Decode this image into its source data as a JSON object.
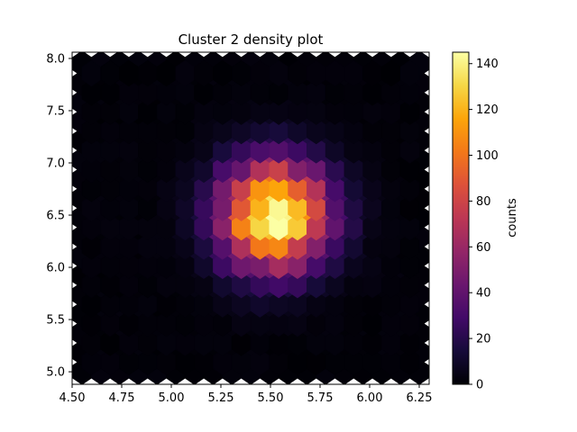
{
  "chart_data": {
    "type": "heatmap",
    "subtype": "hexbin",
    "title": "Cluster 2 density plot",
    "xlabel": "",
    "ylabel": "",
    "xlim": [
      4.5,
      6.3
    ],
    "ylim": [
      4.88,
      8.06
    ],
    "x_ticks": [
      "4.50",
      "4.75",
      "5.00",
      "5.25",
      "5.50",
      "5.75",
      "6.00",
      "6.25"
    ],
    "y_ticks": [
      "5.0",
      "5.5",
      "6.0",
      "6.5",
      "7.0",
      "7.5",
      "8.0"
    ],
    "x_tick_values": [
      4.5,
      4.75,
      5.0,
      5.25,
      5.5,
      5.75,
      6.0,
      6.25
    ],
    "y_tick_values": [
      5.0,
      5.5,
      6.0,
      6.5,
      7.0,
      7.5,
      8.0
    ],
    "hex_extent": {
      "xmin": 4.55,
      "xmax": 6.25,
      "ymin": 5.0,
      "ymax": 7.95
    },
    "gridsize": 18,
    "density_model": {
      "center_x": 5.52,
      "center_y": 6.5,
      "sigma_x": 0.19,
      "sigma_y": 0.36,
      "peak_count": 143
    },
    "colorbar": {
      "label": "counts",
      "cmap": "inferno",
      "range": [
        0,
        145
      ],
      "ticks": [
        "0",
        "20",
        "40",
        "60",
        "80",
        "100",
        "120",
        "140"
      ],
      "tick_values": [
        0,
        20,
        40,
        60,
        80,
        100,
        120,
        140
      ]
    },
    "grid": false
  }
}
